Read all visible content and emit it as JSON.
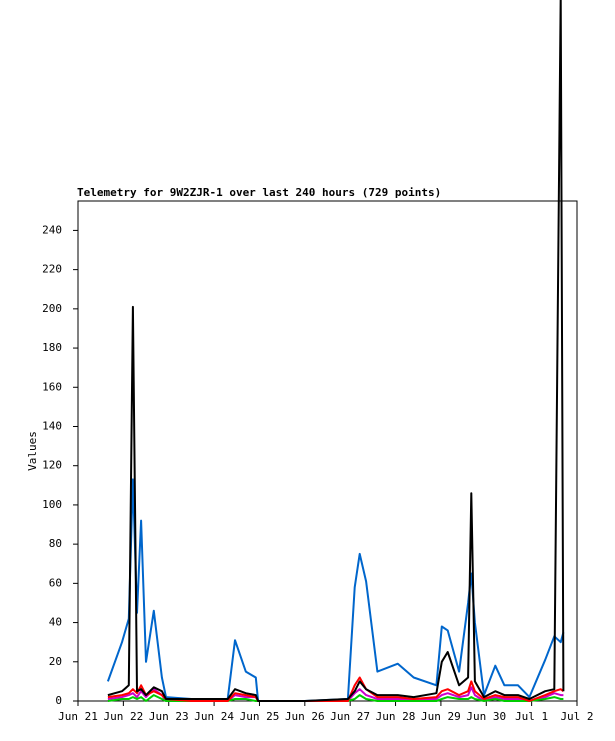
{
  "chart_data": {
    "type": "line",
    "title": "Telemetry for 9W2ZJR-1 over last 240 hours (729 points)",
    "y_label": "Values",
    "x": [
      0.66,
      0.97,
      1.12,
      1.21,
      1.3,
      1.39,
      1.5,
      1.67,
      1.85,
      1.94,
      2.5,
      3.3,
      3.46,
      3.7,
      3.92,
      3.97,
      5.0,
      5.95,
      6.1,
      6.21,
      6.35,
      6.6,
      7.05,
      7.4,
      7.9,
      8.02,
      8.15,
      8.4,
      8.6,
      8.67,
      8.75,
      8.95,
      9.2,
      9.4,
      9.7,
      9.95,
      10.3,
      10.5,
      10.64,
      10.7
    ],
    "series": [
      {
        "color": "#0066cc",
        "values": [
          10,
          30,
          42,
          113,
          45,
          92,
          20,
          46,
          12,
          2,
          1,
          1,
          31,
          15,
          12,
          0,
          0,
          1,
          58,
          75,
          61,
          15,
          19,
          12,
          8,
          38,
          36,
          15,
          50,
          65,
          40,
          3,
          18,
          8,
          8,
          2,
          21,
          33,
          30,
          35
        ]
      },
      {
        "color": "#cc00cc",
        "values": [
          1,
          2,
          3,
          4,
          2,
          5,
          2,
          6,
          3,
          0,
          0,
          0,
          3,
          2,
          2,
          0,
          0,
          0,
          4,
          6,
          3,
          1,
          1,
          1,
          1,
          3,
          4,
          2,
          3,
          7,
          3,
          0,
          2,
          1,
          1,
          0,
          2,
          4,
          3,
          3
        ]
      },
      {
        "color": "#00cc00",
        "values": [
          0,
          1,
          1,
          2,
          1,
          2,
          0,
          3,
          1,
          0,
          0,
          0,
          1,
          1,
          0,
          0,
          0,
          0,
          1,
          3,
          1,
          0,
          0,
          0,
          0,
          1,
          2,
          1,
          1,
          2,
          1,
          0,
          1,
          0,
          0,
          0,
          1,
          2,
          1,
          1
        ]
      },
      {
        "color": "#ff0000",
        "values": [
          2,
          3,
          4,
          6,
          4,
          8,
          3,
          5,
          3,
          1,
          0,
          0,
          4,
          3,
          2,
          0,
          0,
          0,
          8,
          12,
          6,
          2,
          2,
          1,
          2,
          5,
          6,
          3,
          5,
          10,
          5,
          1,
          3,
          2,
          2,
          0,
          3,
          5,
          6,
          5
        ]
      },
      {
        "color": "#000000",
        "values": [
          3,
          5,
          8,
          201,
          5,
          6,
          3,
          7,
          5,
          1,
          1,
          1,
          6,
          4,
          3,
          0,
          0,
          1,
          5,
          10,
          6,
          3,
          3,
          2,
          4,
          20,
          25,
          8,
          12,
          106,
          10,
          2,
          5,
          3,
          3,
          1,
          5,
          6,
          360,
          5
        ]
      }
    ],
    "xlim": [
      0,
      11
    ],
    "xticks": [
      {
        "value": 0,
        "label": "Jun 21"
      },
      {
        "value": 1,
        "label": "Jun 22"
      },
      {
        "value": 2,
        "label": "Jun 23"
      },
      {
        "value": 3,
        "label": "Jun 24"
      },
      {
        "value": 4,
        "label": "Jun 25"
      },
      {
        "value": 5,
        "label": "Jun 26"
      },
      {
        "value": 6,
        "label": "Jun 27"
      },
      {
        "value": 7,
        "label": "Jun 28"
      },
      {
        "value": 8,
        "label": "Jun 29"
      },
      {
        "value": 9,
        "label": "Jun 30"
      },
      {
        "value": 10,
        "label": "Jul 1"
      },
      {
        "value": 11,
        "label": "Jul 2"
      }
    ],
    "ylim": [
      0,
      255
    ],
    "yticks": [
      0,
      20,
      40,
      60,
      80,
      100,
      120,
      140,
      160,
      180,
      200,
      220,
      240
    ]
  }
}
